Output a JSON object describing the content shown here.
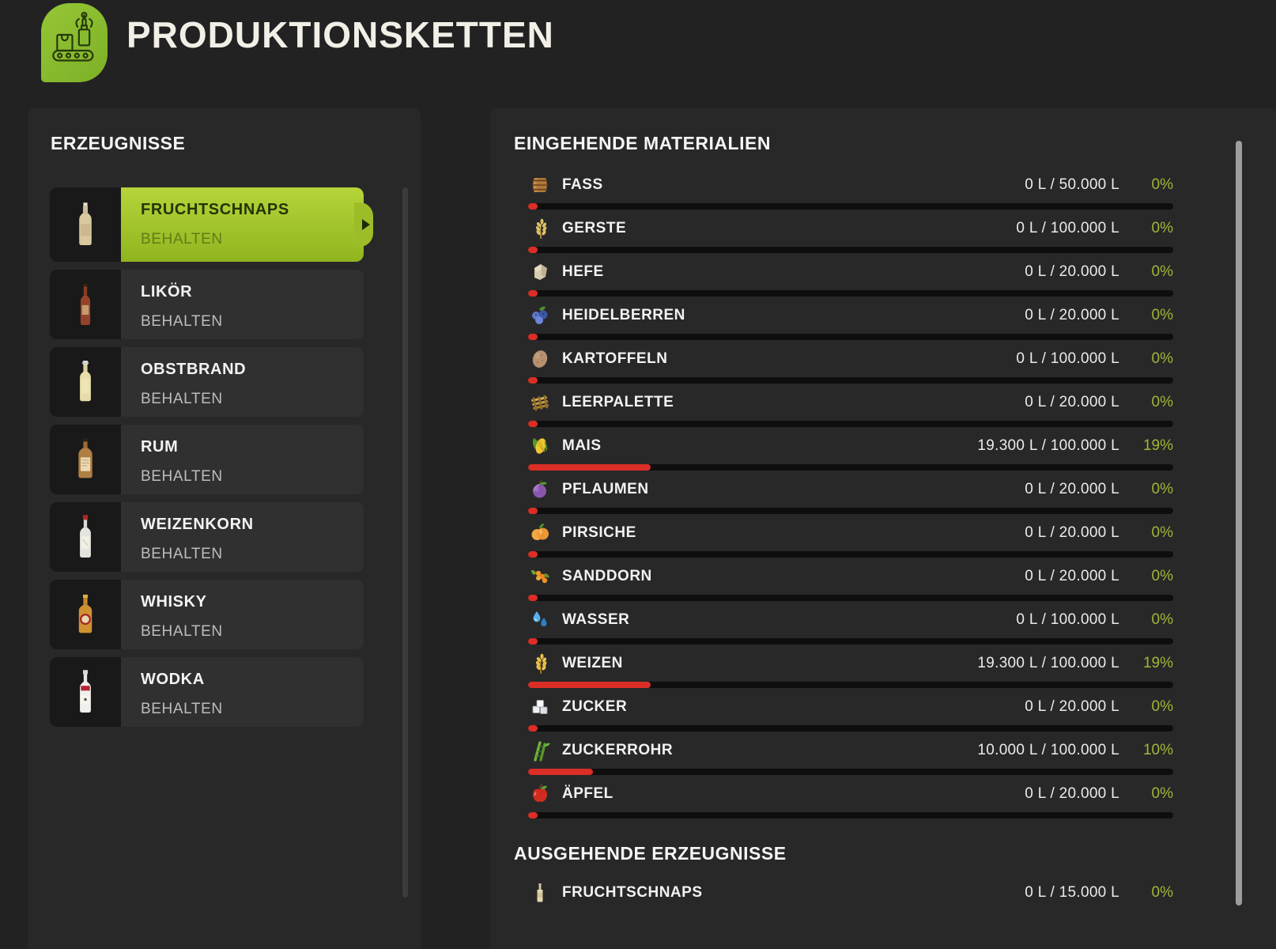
{
  "header": {
    "title": "PRODUKTIONSKETTEN",
    "icon": "production-chain-icon"
  },
  "colors": {
    "accent_green": "#8abc2c",
    "selected_gradient_top": "#b6d43a",
    "selected_gradient_bottom": "#8fb51e",
    "percent_green": "#9fb735",
    "progress_red": "#da2e26"
  },
  "products_panel": {
    "title": "ERZEUGNISSE",
    "items": [
      {
        "name": "FRUCHTSCHNAPS",
        "mode": "BEHALTEN",
        "selected": true,
        "icon": "fruchtschnaps-bottle-icon"
      },
      {
        "name": "LIKÖR",
        "mode": "BEHALTEN",
        "selected": false,
        "icon": "likoer-bottle-icon"
      },
      {
        "name": "OBSTBRAND",
        "mode": "BEHALTEN",
        "selected": false,
        "icon": "obstbrand-bottle-icon"
      },
      {
        "name": "RUM",
        "mode": "BEHALTEN",
        "selected": false,
        "icon": "rum-bottle-icon"
      },
      {
        "name": "WEIZENKORN",
        "mode": "BEHALTEN",
        "selected": false,
        "icon": "weizenkorn-bottle-icon"
      },
      {
        "name": "WHISKY",
        "mode": "BEHALTEN",
        "selected": false,
        "icon": "whisky-bottle-icon"
      },
      {
        "name": "WODKA",
        "mode": "BEHALTEN",
        "selected": false,
        "icon": "wodka-bottle-icon"
      }
    ]
  },
  "materials_panel": {
    "incoming_title": "EINGEHENDE MATERIALIEN",
    "incoming": [
      {
        "name": "FASS",
        "icon": "barrel-icon",
        "amount": "0 L / 50.000 L",
        "percent": 0,
        "percent_label": "0%"
      },
      {
        "name": "GERSTE",
        "icon": "barley-icon",
        "amount": "0 L / 100.000 L",
        "percent": 0,
        "percent_label": "0%"
      },
      {
        "name": "HEFE",
        "icon": "yeast-icon",
        "amount": "0 L / 20.000 L",
        "percent": 0,
        "percent_label": "0%"
      },
      {
        "name": "HEIDELBERREN",
        "icon": "blueberries-icon",
        "amount": "0 L / 20.000 L",
        "percent": 0,
        "percent_label": "0%"
      },
      {
        "name": "KARTOFFELN",
        "icon": "potato-icon",
        "amount": "0 L / 100.000 L",
        "percent": 0,
        "percent_label": "0%"
      },
      {
        "name": "LEERPALETTE",
        "icon": "pallet-icon",
        "amount": "0 L / 20.000 L",
        "percent": 0,
        "percent_label": "0%"
      },
      {
        "name": "MAIS",
        "icon": "corn-icon",
        "amount": "19.300 L / 100.000 L",
        "percent": 19,
        "percent_label": "19%"
      },
      {
        "name": "PFLAUMEN",
        "icon": "plum-icon",
        "amount": "0 L / 20.000 L",
        "percent": 0,
        "percent_label": "0%"
      },
      {
        "name": "PIRSICHE",
        "icon": "peach-icon",
        "amount": "0 L / 20.000 L",
        "percent": 0,
        "percent_label": "0%"
      },
      {
        "name": "SANDDORN",
        "icon": "seabuckthorn-icon",
        "amount": "0 L / 20.000 L",
        "percent": 0,
        "percent_label": "0%"
      },
      {
        "name": "WASSER",
        "icon": "water-icon",
        "amount": "0 L / 100.000 L",
        "percent": 0,
        "percent_label": "0%"
      },
      {
        "name": "WEIZEN",
        "icon": "wheat-icon",
        "amount": "19.300 L / 100.000 L",
        "percent": 19,
        "percent_label": "19%"
      },
      {
        "name": "ZUCKER",
        "icon": "sugar-icon",
        "amount": "0 L / 20.000 L",
        "percent": 0,
        "percent_label": "0%"
      },
      {
        "name": "ZUCKERROHR",
        "icon": "sugarcane-icon",
        "amount": "10.000 L / 100.000 L",
        "percent": 10,
        "percent_label": "10%"
      },
      {
        "name": "ÄPFEL",
        "icon": "apple-icon",
        "amount": "0 L / 20.000 L",
        "percent": 0,
        "percent_label": "0%"
      }
    ],
    "outgoing_title": "AUSGEHENDE ERZEUGNISSE",
    "outgoing": [
      {
        "name": "FRUCHTSCHNAPS",
        "icon": "schnaps-bottle-icon",
        "amount": "0 L / 15.000 L",
        "percent": 0,
        "percent_label": "0%",
        "show_bar": false
      }
    ]
  }
}
